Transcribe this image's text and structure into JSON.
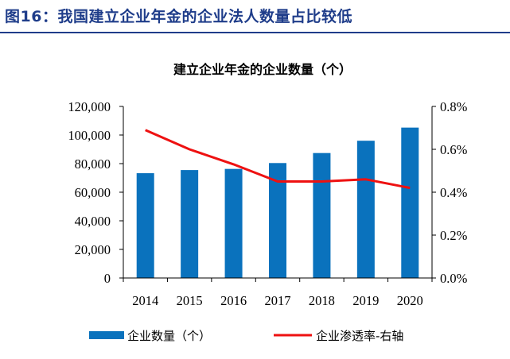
{
  "figure_title": "图16：我国建立企业年金的企业法人数量占比较低",
  "chart_data": {
    "type": "bar",
    "title": "建立企业年金的企业数量（个）",
    "categories": [
      "2014",
      "2015",
      "2016",
      "2017",
      "2018",
      "2019",
      "2020"
    ],
    "series": [
      {
        "name": "企业数量（个）",
        "type": "bar",
        "axis": "left",
        "color": "#0a72bd",
        "values": [
          73300,
          75500,
          76300,
          80400,
          87400,
          96000,
          105200
        ]
      },
      {
        "name": "企业渗透率-右轴",
        "type": "line",
        "axis": "right",
        "color": "#ee1111",
        "values": [
          0.69,
          0.6,
          0.53,
          0.45,
          0.45,
          0.46,
          0.42
        ]
      }
    ],
    "y_left": {
      "ylim": [
        0,
        120000
      ],
      "ticks": [
        0,
        20000,
        40000,
        60000,
        80000,
        100000,
        120000
      ],
      "tick_labels": [
        "0",
        "20,000",
        "40,000",
        "60,000",
        "80,000",
        "100,000",
        "120,000"
      ]
    },
    "y_right": {
      "ylim": [
        0.0,
        0.8
      ],
      "ticks": [
        0.0,
        0.2,
        0.4,
        0.6,
        0.8
      ],
      "tick_labels": [
        "0.0%",
        "0.2%",
        "0.4%",
        "0.6%",
        "0.8%"
      ]
    },
    "grid": false,
    "legend_position": "bottom"
  }
}
